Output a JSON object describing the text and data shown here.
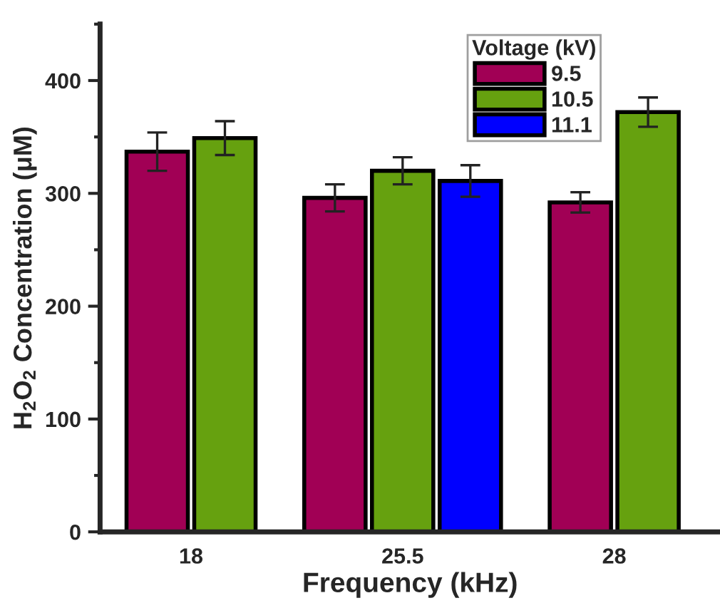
{
  "chart_data": {
    "type": "bar",
    "xlabel": "Frequency (kHz)",
    "ylabel": "H$_{2}$O$_{2}$ Concentration (μM)",
    "legend_title": "Voltage (kV)",
    "categories": [
      "18",
      "25.5",
      "28"
    ],
    "series": [
      {
        "name": "9.5",
        "color": "#a10055",
        "values": [
          337,
          296,
          292
        ],
        "errors": [
          17,
          12,
          9
        ]
      },
      {
        "name": "10.5",
        "color": "#66a10f",
        "values": [
          349,
          320,
          372
        ],
        "errors": [
          15,
          12,
          13
        ]
      },
      {
        "name": "11.1",
        "color": "#0000ff",
        "values": [
          null,
          311,
          null
        ],
        "errors": [
          null,
          14,
          null
        ]
      }
    ],
    "ylim": [
      0,
      450
    ],
    "yticks": [
      0,
      100,
      200,
      300,
      400
    ],
    "grid": false,
    "legend": "top right"
  }
}
